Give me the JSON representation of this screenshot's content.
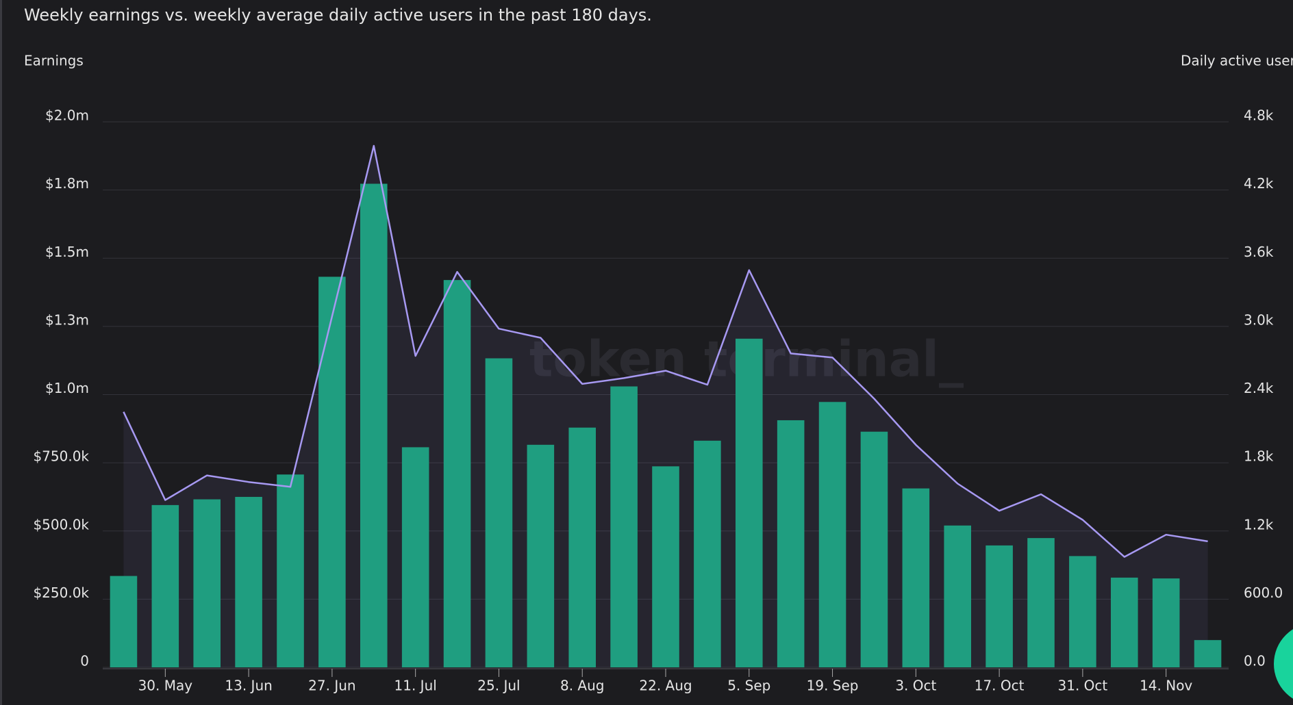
{
  "chart_data": {
    "type": "bar-line",
    "title": "Weekly earnings vs. weekly average daily active users in the past 180 days.",
    "watermark": "token terminal_",
    "categories": [
      null,
      "30. May",
      null,
      "13. Jun",
      null,
      "27. Jun",
      null,
      "11. Jul",
      null,
      "25. Jul",
      null,
      "8. Aug",
      null,
      "22. Aug",
      null,
      "5. Sep",
      null,
      "19. Sep",
      null,
      "3. Oct",
      null,
      "17. Oct",
      null,
      "31. Oct",
      null,
      "14. Nov",
      null
    ],
    "series": [
      {
        "name": "Earnings",
        "type": "bar",
        "color": "#1f9e80",
        "axis": "y",
        "values": [
          335000,
          595000,
          616000,
          625000,
          707000,
          1432000,
          1773000,
          807000,
          1420000,
          1133000,
          816000,
          879000,
          1030000,
          737000,
          831000,
          1205000,
          906000,
          973000,
          864000,
          656000,
          520000,
          447000,
          474000,
          408000,
          329000,
          326000,
          100000
        ]
      },
      {
        "name": "Daily active users",
        "type": "line",
        "color": "#a799f2",
        "axis": "y2",
        "values": [
          2248,
          1472,
          1689,
          1631,
          1588,
          3089,
          4589,
          2740,
          3480,
          2980,
          2900,
          2494,
          2545,
          2610,
          2487,
          3495,
          2762,
          2726,
          2364,
          1958,
          1617,
          1378,
          1523,
          1298,
          972,
          1167,
          1109
        ]
      }
    ],
    "ylim": [
      0,
      2000000
    ],
    "yticks": [
      0,
      {
        "value": 250000,
        "label": "$250.0k"
      },
      {
        "value": 500000,
        "label": "$500.0k"
      },
      {
        "value": 750000,
        "label": "$750.0k"
      },
      {
        "value": 1000000,
        "label": "$1.0m"
      },
      {
        "value": 1250000,
        "label": "$1.3m"
      },
      {
        "value": 1500000,
        "label": "$1.5m"
      },
      {
        "value": 1750000,
        "label": "$1.8m"
      },
      {
        "value": 2000000,
        "label": "$2.0m"
      }
    ],
    "y2lim": [
      0,
      4800
    ],
    "y2ticks": [
      {
        "value": 0,
        "label": "0.0"
      },
      {
        "value": 600,
        "label": "600.0"
      },
      {
        "value": 1200,
        "label": "1.2k"
      },
      {
        "value": 1800,
        "label": "1.8k"
      },
      {
        "value": 2400,
        "label": "2.4k"
      },
      {
        "value": 3000,
        "label": "3.0k"
      },
      {
        "value": 3600,
        "label": "3.6k"
      },
      {
        "value": 4200,
        "label": "4.2k"
      },
      {
        "value": 4800,
        "label": "4.8k"
      }
    ],
    "grid": true
  }
}
